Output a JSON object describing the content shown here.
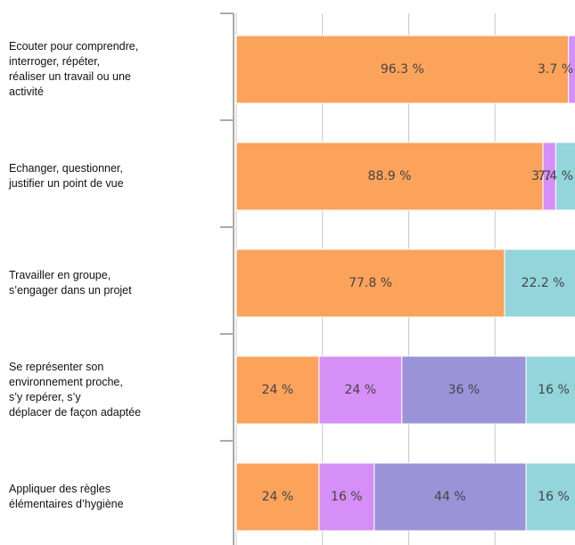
{
  "chart_data": {
    "type": "stacked-barh",
    "categories": [
      "Ecouter pour comprendre,\ninterroger, répéter,\nréaliser un travail ou une\nactivité",
      "Echanger, questionner,\njustifier un point de vue",
      "Travailler en groupe,\ns’engager dans un projet",
      "Se représenter son\nenvironnement proche,\ns’y repérer, s’y\ndéplacer de façon adaptée",
      "Appliquer des règles\nélémentaires d’hygiène"
    ],
    "series": [
      {
        "color": "#fba35b",
        "values": [
          96.3,
          88.9,
          77.8,
          24,
          24
        ],
        "value_labels": [
          "96.3 %",
          "88.9 %",
          "77.8 %",
          "24 %",
          "24 %"
        ]
      },
      {
        "color": "#d58ff6",
        "values": [
          3.7,
          3.7,
          null,
          24,
          16
        ],
        "value_labels": [
          "3.7 %",
          "3.7 %",
          null,
          "24 %",
          "16 %"
        ]
      },
      {
        "color": "#9b93d8",
        "values": [
          null,
          null,
          null,
          36,
          44
        ],
        "value_labels": [
          null,
          null,
          null,
          "36 %",
          "44 %"
        ]
      },
      {
        "color": "#93d5db",
        "values": [
          null,
          7.4,
          22.2,
          16,
          16
        ],
        "value_labels": [
          null,
          "7.4 %",
          "22.2 %",
          "16 %",
          "16 %"
        ]
      }
    ],
    "xlim": [
      0,
      100
    ],
    "xticks": [
      0,
      25,
      50,
      75,
      100
    ],
    "grid": true
  }
}
